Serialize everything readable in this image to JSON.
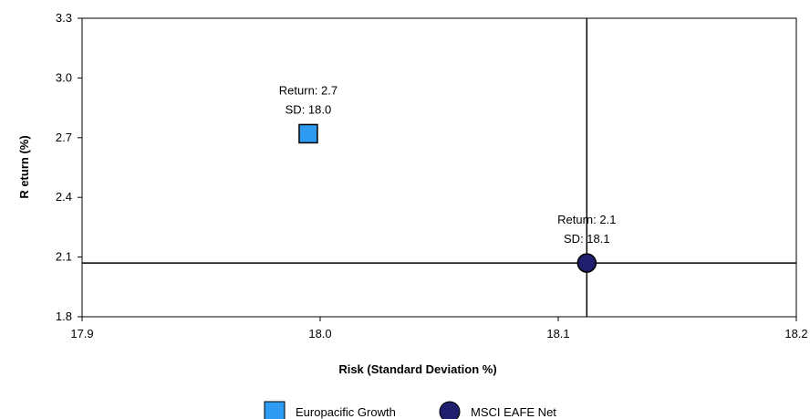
{
  "chart_data": {
    "type": "scatter",
    "xlabel": "Risk (Standard Deviation %)",
    "ylabel": "R eturn (%)",
    "xlim": [
      17.9,
      18.2
    ],
    "ylim": [
      1.8,
      3.3
    ],
    "x_ticks": [
      "17.9",
      "18.0",
      "18.1",
      "18.2"
    ],
    "y_ticks": [
      "1.8",
      "2.1",
      "2.4",
      "2.7",
      "3.0",
      "3.3"
    ],
    "grid": false,
    "legend_position": "bottom",
    "series": [
      {
        "name": "Europacific Growth",
        "marker": "square",
        "color": "#2e9bf0",
        "x": 17.995,
        "y": 2.72,
        "label_lines": [
          "Return: 2.7",
          "SD: 18.0"
        ]
      },
      {
        "name": "MSCI EAFE Net",
        "marker": "circle",
        "color": "#1f1f6e",
        "x": 18.112,
        "y": 2.07,
        "label_lines": [
          "Return: 2.1",
          "SD: 18.1"
        ]
      }
    ],
    "benchmark_crosshair": {
      "x": 18.112,
      "y": 2.07
    }
  }
}
